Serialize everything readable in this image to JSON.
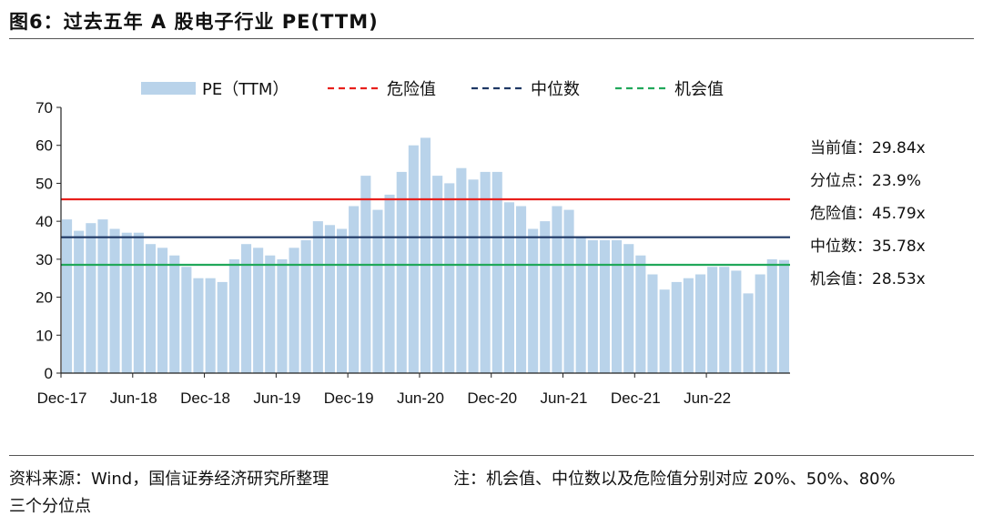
{
  "figure_title": "图6：过去五年 A 股电子行业 PE(TTM)",
  "source_text": "资料来源：Wind，国信证券经济研究所整理",
  "note_text": "注：机会值、中位数以及危险值分别对应 20%、50%、80%",
  "note_text_cont": "三个分位点",
  "stats": [
    {
      "label": "当前值：",
      "value": "29.84x"
    },
    {
      "label": "分位点：",
      "value": "23.9%"
    },
    {
      "label": "危险值：",
      "value": "45.79x"
    },
    {
      "label": "中位数：",
      "value": "35.78x"
    },
    {
      "label": "机会值：",
      "value": "28.53x"
    }
  ],
  "colors": {
    "bars": "#b9d3ea",
    "danger": "#e8201c",
    "median": "#1f3864",
    "opportunity": "#21a85a"
  },
  "chart_data": {
    "type": "bar",
    "legend": {
      "placement": "top",
      "entries": [
        "PE（TTM）",
        "危险值",
        "中位数",
        "机会值"
      ]
    },
    "x_tick_labels": [
      "Dec-17",
      "Jun-18",
      "Dec-18",
      "Jun-19",
      "Dec-19",
      "Jun-20",
      "Dec-20",
      "Jun-21",
      "Dec-21",
      "Jun-22"
    ],
    "ylim": [
      0,
      70
    ],
    "y_ticks": [
      0,
      10,
      20,
      30,
      40,
      50,
      60,
      70
    ],
    "reference_lines": [
      {
        "name": "危险值",
        "value": 45.79
      },
      {
        "name": "中位数",
        "value": 35.78
      },
      {
        "name": "机会值",
        "value": 28.53
      }
    ],
    "x": [
      "2017-12",
      "2018-01",
      "2018-02",
      "2018-03",
      "2018-04",
      "2018-05",
      "2018-06",
      "2018-07",
      "2018-08",
      "2018-09",
      "2018-10",
      "2018-11",
      "2018-12",
      "2019-01",
      "2019-02",
      "2019-03",
      "2019-04",
      "2019-05",
      "2019-06",
      "2019-07",
      "2019-08",
      "2019-09",
      "2019-10",
      "2019-11",
      "2019-12",
      "2020-01",
      "2020-02",
      "2020-03",
      "2020-04",
      "2020-05",
      "2020-06",
      "2020-07",
      "2020-08",
      "2020-09",
      "2020-10",
      "2020-11",
      "2020-12",
      "2021-01",
      "2021-02",
      "2021-03",
      "2021-04",
      "2021-05",
      "2021-06",
      "2021-07",
      "2021-08",
      "2021-09",
      "2021-10",
      "2021-11",
      "2021-12",
      "2022-01",
      "2022-02",
      "2022-03",
      "2022-04",
      "2022-05",
      "2022-06",
      "2022-07",
      "2022-08",
      "2022-09",
      "2022-10",
      "2022-11",
      "2022-12"
    ],
    "series": [
      {
        "name": "PE（TTM）",
        "values": [
          40.5,
          37.5,
          39.5,
          40.5,
          38,
          37,
          37,
          34,
          33,
          31,
          28,
          25,
          25,
          24,
          30,
          34,
          33,
          31,
          30,
          33,
          35,
          40,
          39,
          38,
          44,
          52,
          43,
          47,
          53,
          60,
          62,
          52,
          50,
          54,
          51,
          53,
          53,
          45,
          44,
          38,
          40,
          44,
          43,
          36,
          35,
          35,
          35,
          34,
          31,
          26,
          22,
          24,
          25,
          26,
          28,
          28,
          27,
          21,
          26,
          30,
          29.8
        ]
      }
    ]
  }
}
